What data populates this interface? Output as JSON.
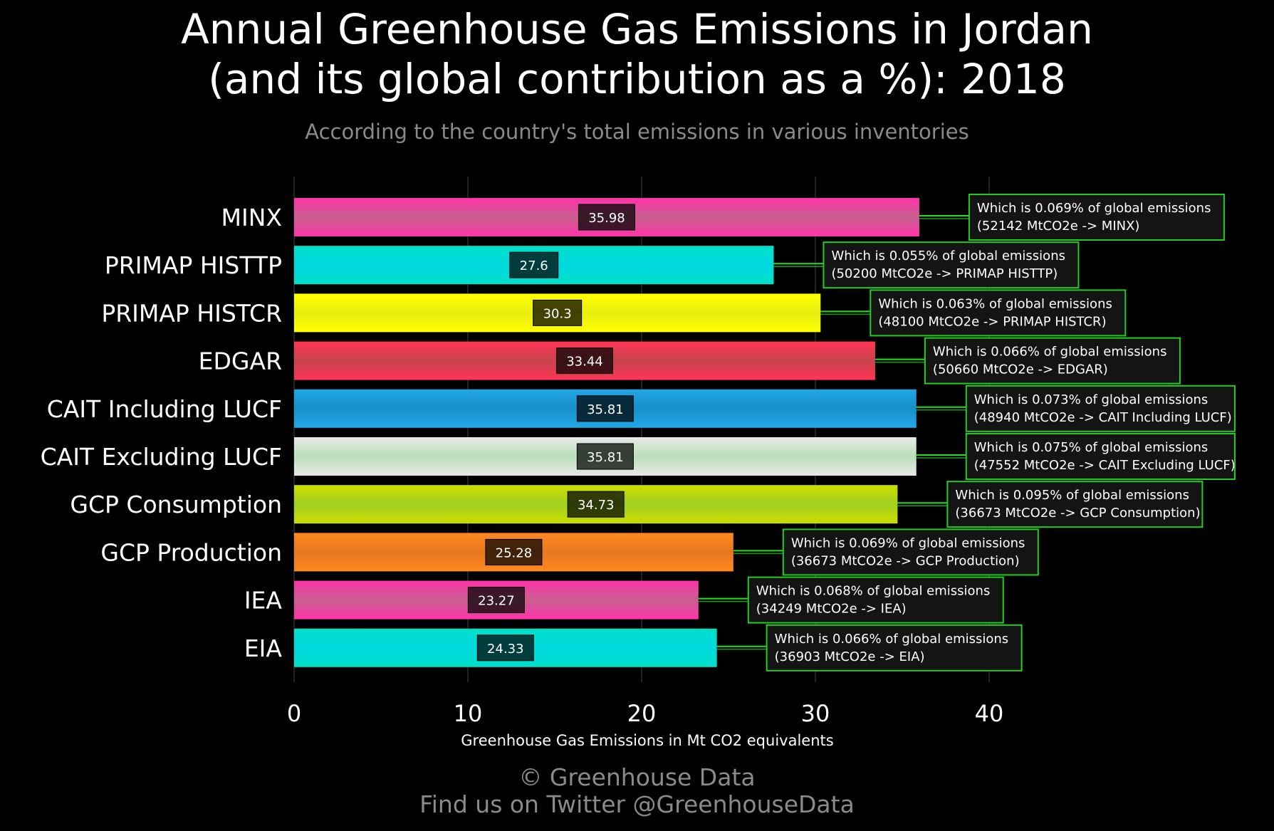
{
  "header": {
    "title_line1": "Annual Greenhouse Gas Emissions in Jordan",
    "title_line2": "(and its global contribution as a %): 2018",
    "subtitle": "According to the country's total emissions in various inventories"
  },
  "footer": {
    "credit": "© Greenhouse Data",
    "twitter": "Find us on Twitter @GreenhouseData"
  },
  "chart_data": {
    "type": "bar",
    "orientation": "horizontal",
    "xlabel": "Greenhouse Gas Emissions in Mt CO2 equivalents",
    "ylabel": "",
    "xlim": [
      0,
      45
    ],
    "xticks": [
      0,
      10,
      20,
      30,
      40
    ],
    "grid": "vertical",
    "categories": [
      "MINX",
      "PRIMAP HISTTP",
      "PRIMAP HISTCR",
      "EDGAR",
      "CAIT Including LUCF",
      "CAIT Excluding LUCF",
      "GCP Consumption",
      "GCP Production",
      "IEA",
      "EIA"
    ],
    "values": [
      35.98,
      27.6,
      30.3,
      33.44,
      35.81,
      35.81,
      34.73,
      25.28,
      23.27,
      24.33
    ],
    "value_labels": [
      "35.98",
      "27.6",
      "30.3",
      "33.44",
      "35.81",
      "35.81",
      "34.73",
      "25.28",
      "23.27",
      "24.33"
    ],
    "annotations": [
      {
        "line1": "Which is 0.069% of global emissions",
        "line2": "(52142 MtCO2e -> MINX)"
      },
      {
        "line1": "Which is 0.055% of global emissions",
        "line2": "(50200 MtCO2e -> PRIMAP HISTTP)"
      },
      {
        "line1": "Which is 0.063% of global emissions",
        "line2": "(48100 MtCO2e -> PRIMAP HISTCR)"
      },
      {
        "line1": "Which is 0.066% of global emissions",
        "line2": "(50660 MtCO2e -> EDGAR)"
      },
      {
        "line1": "Which is 0.073% of global emissions",
        "line2": "(48940 MtCO2e -> CAIT Including LUCF)"
      },
      {
        "line1": "Which is 0.075% of global emissions",
        "line2": "(47552 MtCO2e -> CAIT Excluding LUCF)"
      },
      {
        "line1": "Which is 0.095% of global emissions",
        "line2": "(36673 MtCO2e -> GCP Consumption)"
      },
      {
        "line1": "Which is 0.069% of global emissions",
        "line2": "(36673 MtCO2e -> GCP Production)"
      },
      {
        "line1": "Which is 0.068% of global emissions",
        "line2": "(34249 MtCO2e -> IEA)"
      },
      {
        "line1": "Which is 0.066% of global emissions",
        "line2": "(36903 MtCO2e -> EIA)"
      }
    ],
    "colors": [
      [
        "#ff33aa",
        "#c8608e"
      ],
      [
        "#00e0c8",
        "#00d8e0"
      ],
      [
        "#ffff00",
        "#e8ee10"
      ],
      [
        "#ff3355",
        "#c8444c"
      ],
      [
        "#20a8e8",
        "#1890c8"
      ],
      [
        "#e8e8e8",
        "#b8e0b8"
      ],
      [
        "#ccdd00",
        "#a0d020"
      ],
      [
        "#ff8820",
        "#e87820"
      ],
      [
        "#ff33aa",
        "#c8608e"
      ],
      [
        "#00e0c8",
        "#00d8e0"
      ]
    ],
    "annotation_border_color": "#22cc22",
    "connector_color": "#22dd22"
  }
}
